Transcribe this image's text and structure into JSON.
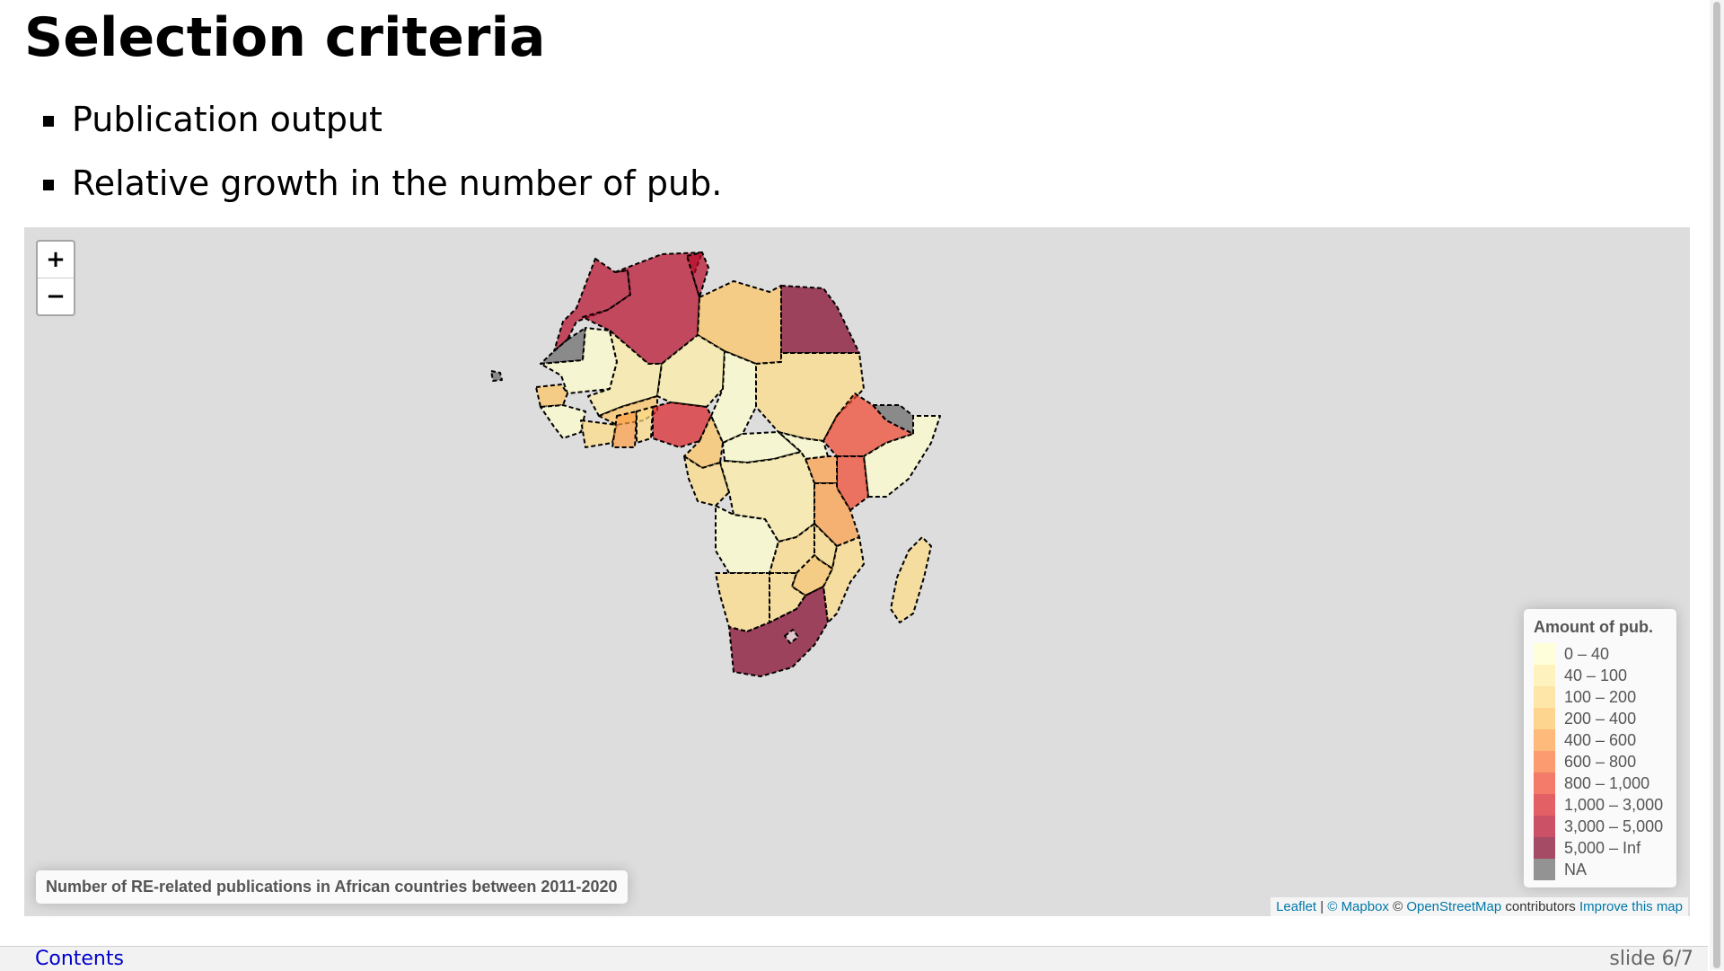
{
  "slide": {
    "title": "Selection criteria",
    "bullets": [
      "Publication output",
      "Relative growth in the number of pub."
    ]
  },
  "map": {
    "zoom_in": "+",
    "zoom_out": "−",
    "caption": "Number of RE-related publications in African countries between 2011-2020",
    "legend": {
      "title": "Amount of pub.",
      "items": [
        {
          "label": "0 – 40",
          "color": "#ffffcc"
        },
        {
          "label": "40 – 100",
          "color": "#ffefa5"
        },
        {
          "label": "100 – 200",
          "color": "#fedd84"
        },
        {
          "label": "200 – 400",
          "color": "#fec460"
        },
        {
          "label": "400 – 600",
          "color": "#fd9e43"
        },
        {
          "label": "600 – 800",
          "color": "#fc7134"
        },
        {
          "label": "800 – 1,000",
          "color": "#f1442b"
        },
        {
          "label": "1,000 – 3,000",
          "color": "#d81e23"
        },
        {
          "label": "3,000 – 5,000",
          "color": "#b60827"
        },
        {
          "label": "5,000 – Inf",
          "color": "#800026"
        },
        {
          "label": "NA",
          "color": "#666666"
        }
      ]
    },
    "attribution": {
      "leaflet": "Leaflet",
      "sep": " | ",
      "mapbox": "© Mapbox",
      "copy": " © ",
      "osm": "OpenStreetMap",
      "contributors": " contributors ",
      "improve": "Improve this map"
    }
  },
  "footer": {
    "contents": "Contents",
    "slide_number": "slide 6/7"
  }
}
